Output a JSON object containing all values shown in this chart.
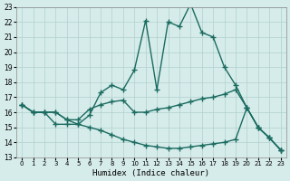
{
  "xlabel": "Humidex (Indice chaleur)",
  "ylabel": "",
  "background_color": "#d6ecea",
  "grid_color": "#b0d0ce",
  "line_color": "#1a6b60",
  "xlim": [
    0,
    23
  ],
  "ylim": [
    13,
    23
  ],
  "xticks": [
    0,
    1,
    2,
    3,
    4,
    5,
    6,
    7,
    8,
    9,
    10,
    11,
    12,
    13,
    14,
    15,
    16,
    17,
    18,
    19,
    20,
    21,
    22,
    23
  ],
  "yticks": [
    13,
    14,
    15,
    16,
    17,
    18,
    19,
    20,
    21,
    22,
    23
  ],
  "line1_x": [
    0,
    1,
    2,
    3,
    4,
    5,
    6,
    7,
    8,
    9,
    10,
    11,
    12,
    13,
    14,
    15,
    16,
    17,
    18,
    19,
    20,
    21,
    22,
    23
  ],
  "line1_y": [
    16.5,
    16.0,
    16.0,
    15.2,
    15.2,
    15.2,
    15.8,
    17.3,
    17.8,
    17.5,
    18.8,
    22.1,
    17.5,
    22.0,
    21.7,
    23.2,
    21.3,
    21.0,
    19.0,
    17.8,
    16.3,
    15.0,
    14.3,
    13.5
  ],
  "line2_x": [
    0,
    1,
    2,
    3,
    4,
    5,
    6,
    7,
    8,
    9,
    10,
    11,
    12,
    13,
    14,
    15,
    16,
    17,
    18,
    19,
    20,
    21,
    22,
    23
  ],
  "line2_y": [
    16.5,
    16.0,
    16.0,
    16.0,
    15.5,
    15.5,
    16.2,
    16.5,
    16.7,
    16.8,
    16.0,
    16.0,
    16.2,
    16.3,
    16.5,
    16.7,
    16.9,
    17.0,
    17.2,
    17.5,
    16.3,
    15.0,
    14.3,
    13.5
  ],
  "line3_x": [
    0,
    1,
    2,
    3,
    4,
    5,
    6,
    7,
    8,
    9,
    10,
    11,
    12,
    13,
    14,
    15,
    16,
    17,
    18,
    19,
    20,
    21,
    22,
    23
  ],
  "line3_y": [
    16.5,
    16.0,
    16.0,
    16.0,
    15.5,
    15.2,
    15.0,
    14.8,
    14.5,
    14.2,
    14.0,
    13.8,
    13.7,
    13.6,
    13.6,
    13.7,
    13.8,
    13.9,
    14.0,
    14.2,
    16.3,
    15.0,
    14.3,
    13.5
  ]
}
